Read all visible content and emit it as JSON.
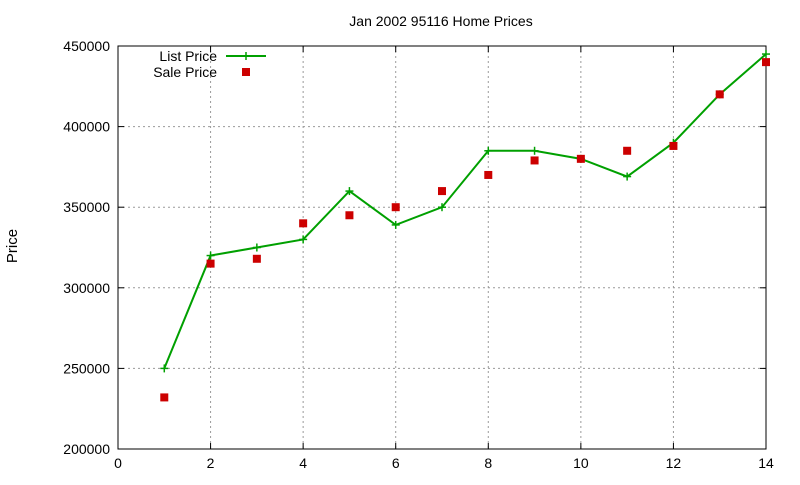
{
  "chart_data": {
    "type": "line",
    "title": "Jan 2002 95116 Home Prices",
    "xlabel": "",
    "ylabel": "Price",
    "xlim": [
      0,
      14
    ],
    "ylim": [
      200000,
      450000
    ],
    "x_ticks": [
      0,
      2,
      4,
      6,
      8,
      10,
      12,
      14
    ],
    "y_ticks": [
      200000,
      250000,
      300000,
      350000,
      400000,
      450000
    ],
    "grid": true,
    "legend_position": "top-left",
    "series": [
      {
        "name": "List Price",
        "style": "line-with-plus-markers",
        "color": "#00a000",
        "x": [
          1,
          2,
          3,
          4,
          5,
          6,
          7,
          8,
          9,
          10,
          11,
          12,
          13,
          14
        ],
        "values": [
          250000,
          320000,
          325000,
          330000,
          360000,
          339000,
          350000,
          385000,
          385000,
          380000,
          369000,
          390000,
          420000,
          445000
        ]
      },
      {
        "name": "Sale Price",
        "style": "square-markers",
        "color": "#cc0000",
        "x": [
          1,
          2,
          3,
          4,
          5,
          6,
          7,
          8,
          9,
          10,
          11,
          12,
          13,
          14
        ],
        "values": [
          232000,
          315000,
          318000,
          340000,
          345000,
          350000,
          360000,
          370000,
          379000,
          380000,
          385000,
          388000,
          420000,
          440000
        ]
      }
    ]
  }
}
